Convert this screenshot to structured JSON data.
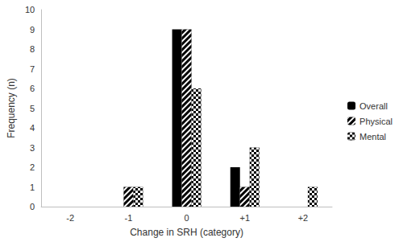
{
  "chart_data": {
    "type": "bar",
    "x_label": "Change in SRH (category)",
    "y_label": "Frequency (n)",
    "categories": [
      "-2",
      "-1",
      "0",
      "+1",
      "+2"
    ],
    "series": [
      {
        "name": "Overall",
        "color": "#000000",
        "values": [
          0,
          0,
          9,
          2,
          0
        ]
      },
      {
        "name": "Physical",
        "color": "#000000",
        "values": [
          0,
          1,
          9,
          1,
          0
        ]
      },
      {
        "name": "Mental",
        "color": "#000000",
        "values": [
          0,
          1,
          6,
          3,
          1
        ]
      }
    ],
    "ylim": [
      0,
      10
    ],
    "yticks": [
      0,
      1,
      2,
      3,
      4,
      5,
      6,
      7,
      8,
      9,
      10
    ],
    "grid": false,
    "legend": "right"
  }
}
